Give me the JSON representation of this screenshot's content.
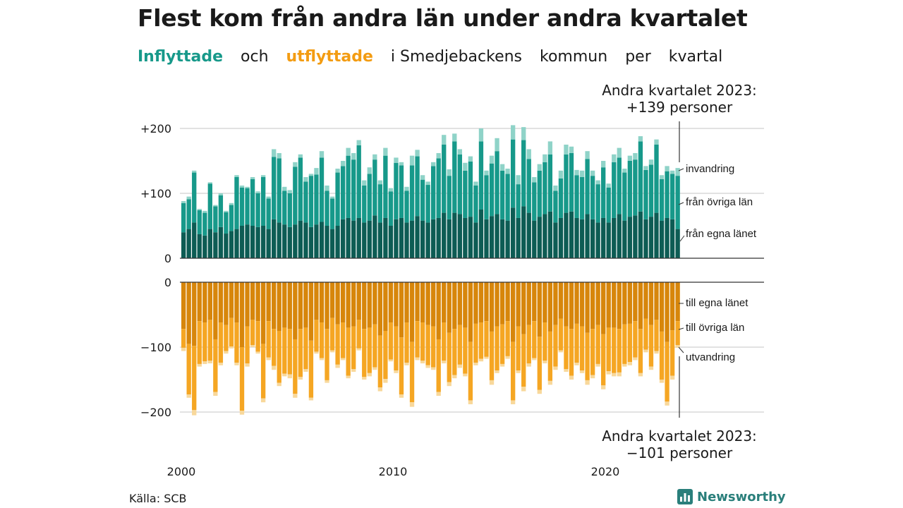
{
  "title": "Flest kom från andra län under andra kvartalet",
  "subtitle": {
    "inflow": "Inflyttade",
    "och": "och",
    "outflow": "utflyttade",
    "rest1": "i Smedjebackens",
    "rest2": "kommun",
    "rest3": "per",
    "rest4": "kvartal"
  },
  "notes": {
    "top_line1": "Andra kvartalet 2023:",
    "top_line2": "+139 personer",
    "bottom_line1": "Andra kvartalet 2023:",
    "bottom_line2": "−101 personer"
  },
  "source": "Källa: SCB",
  "brand": {
    "name": "Newsworthy",
    "icon": "bar-chart-logo-icon"
  },
  "colors": {
    "in_egna": "#0d5c54",
    "in_ovriga": "#17998a",
    "in_invandring": "#8fd3c8",
    "out_egna": "#d7860b",
    "out_ovriga": "#f5a623",
    "out_utvandring": "#f8d89b",
    "grid": "#d9d9d9"
  },
  "chart_data": {
    "type": "bar",
    "stacked": true,
    "diverging": true,
    "x_start": "2000 Q1",
    "x_end": "2023 Q2",
    "x_ticks": [
      "2000",
      "2010",
      "2020"
    ],
    "y_top_ticks": [
      "+200",
      "+100",
      "0"
    ],
    "y_bottom_ticks": [
      "0",
      "−100",
      "−200"
    ],
    "y_top_range": [
      0,
      200
    ],
    "y_bottom_range": [
      -200,
      0
    ],
    "in_series_names": [
      "från egna länet",
      "från övriga län",
      "invandring"
    ],
    "out_series_names": [
      "till egna länet",
      "till övriga län",
      "utvandring"
    ],
    "in_totals": [
      88,
      95,
      135,
      76,
      73,
      117,
      82,
      100,
      73,
      85,
      128,
      112,
      110,
      125,
      103,
      128,
      95,
      168,
      162,
      110,
      105,
      148,
      160,
      125,
      130,
      139,
      165,
      112,
      95,
      138,
      150,
      170,
      162,
      182,
      120,
      140,
      160,
      120,
      170,
      108,
      155,
      148,
      110,
      158,
      167,
      128,
      118,
      148,
      162,
      190,
      137,
      192,
      168,
      147,
      157,
      118,
      200,
      135,
      158,
      185,
      145,
      138,
      205,
      128,
      202,
      168,
      125,
      145,
      160,
      180,
      112,
      135,
      175,
      172,
      136,
      135,
      165,
      135,
      120,
      150,
      115,
      160,
      170,
      138,
      158,
      162,
      188,
      142,
      152,
      183,
      128,
      142,
      135,
      139
    ],
    "in_invandring": [
      3,
      4,
      3,
      2,
      3,
      2,
      2,
      3,
      2,
      3,
      3,
      3,
      2,
      3,
      3,
      3,
      3,
      12,
      8,
      6,
      5,
      7,
      5,
      7,
      3,
      10,
      10,
      8,
      3,
      6,
      8,
      12,
      10,
      8,
      8,
      10,
      8,
      6,
      12,
      5,
      8,
      5,
      6,
      15,
      10,
      7,
      5,
      6,
      8,
      15,
      10,
      12,
      8,
      12,
      8,
      6,
      20,
      7,
      12,
      20,
      10,
      8,
      22,
      14,
      20,
      15,
      8,
      10,
      12,
      20,
      8,
      12,
      15,
      10,
      8,
      10,
      12,
      8,
      6,
      10,
      6,
      12,
      15,
      6,
      8,
      10,
      8,
      6,
      8,
      8,
      6,
      8,
      5,
      12
    ],
    "in_egna": [
      40,
      45,
      55,
      37,
      35,
      45,
      40,
      48,
      38,
      42,
      45,
      50,
      52,
      50,
      48,
      50,
      45,
      60,
      55,
      52,
      48,
      52,
      58,
      55,
      48,
      52,
      56,
      50,
      45,
      50,
      60,
      62,
      58,
      62,
      55,
      58,
      66,
      55,
      62,
      50,
      60,
      62,
      55,
      58,
      65,
      58,
      55,
      60,
      62,
      70,
      60,
      70,
      68,
      62,
      64,
      55,
      75,
      60,
      65,
      68,
      60,
      58,
      78,
      62,
      80,
      70,
      58,
      64,
      68,
      72,
      55,
      62,
      70,
      72,
      62,
      60,
      68,
      60,
      55,
      62,
      55,
      62,
      68,
      58,
      64,
      66,
      72,
      60,
      64,
      70,
      58,
      62,
      60,
      45
    ],
    "out_totals": [
      106,
      178,
      205,
      130,
      126,
      125,
      175,
      128,
      110,
      102,
      128,
      204,
      130,
      100,
      110,
      185,
      120,
      135,
      160,
      145,
      148,
      178,
      150,
      138,
      182,
      110,
      120,
      155,
      108,
      132,
      120,
      148,
      138,
      105,
      150,
      145,
      135,
      168,
      155,
      122,
      140,
      178,
      128,
      192,
      120,
      125,
      132,
      135,
      175,
      125,
      160,
      148,
      132,
      145,
      188,
      128,
      122,
      118,
      158,
      140,
      130,
      118,
      188,
      140,
      168,
      130,
      120,
      172,
      125,
      158,
      135,
      108,
      138,
      150,
      128,
      140,
      158,
      148,
      130,
      165,
      142,
      145,
      145,
      130,
      128,
      120,
      145,
      108,
      135,
      110,
      155,
      190,
      150,
      101
    ],
    "out_utvandring": [
      5,
      5,
      8,
      4,
      4,
      4,
      6,
      4,
      4,
      3,
      4,
      6,
      5,
      3,
      3,
      6,
      4,
      6,
      5,
      4,
      6,
      6,
      4,
      4,
      4,
      3,
      3,
      4,
      3,
      5,
      3,
      4,
      4,
      3,
      4,
      5,
      4,
      6,
      6,
      3,
      4,
      5,
      4,
      7,
      4,
      4,
      4,
      4,
      6,
      4,
      6,
      5,
      5,
      4,
      6,
      4,
      4,
      3,
      7,
      4,
      4,
      4,
      6,
      4,
      7,
      5,
      3,
      6,
      4,
      6,
      5,
      3,
      4,
      6,
      4,
      4,
      7,
      5,
      4,
      6,
      5,
      5,
      6,
      4,
      5,
      4,
      5,
      4,
      5,
      4,
      5,
      6,
      6,
      4
    ],
    "out_egna": [
      72,
      95,
      98,
      60,
      62,
      58,
      88,
      62,
      66,
      55,
      62,
      100,
      68,
      58,
      60,
      95,
      60,
      72,
      75,
      70,
      72,
      88,
      72,
      70,
      90,
      58,
      62,
      72,
      55,
      65,
      62,
      70,
      68,
      58,
      72,
      70,
      65,
      82,
      75,
      62,
      68,
      85,
      62,
      92,
      60,
      62,
      66,
      68,
      88,
      62,
      78,
      72,
      66,
      70,
      92,
      64,
      62,
      60,
      76,
      68,
      65,
      60,
      92,
      68,
      80,
      66,
      60,
      84,
      62,
      76,
      66,
      56,
      68,
      72,
      64,
      68,
      78,
      72,
      66,
      80,
      70,
      70,
      72,
      65,
      64,
      60,
      72,
      56,
      66,
      58,
      76,
      92,
      74,
      60
    ]
  }
}
